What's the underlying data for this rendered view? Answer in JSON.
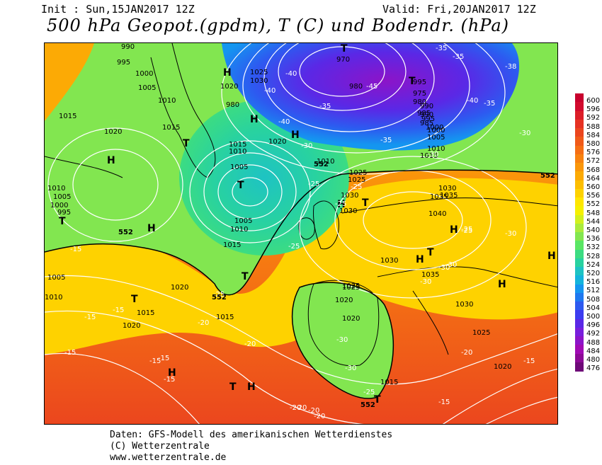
{
  "header": {
    "init": "Init : Sun,15JAN2017 12Z",
    "valid": "Valid: Fri,20JAN2017 12Z",
    "title": "500 hPa Geopot.(gpdm), T (C) und Bodendr. (hPa)"
  },
  "colorbar": {
    "labels": [
      "600",
      "596",
      "592",
      "588",
      "584",
      "580",
      "576",
      "572",
      "568",
      "564",
      "560",
      "556",
      "552",
      "548",
      "544",
      "540",
      "536",
      "532",
      "528",
      "524",
      "520",
      "516",
      "512",
      "508",
      "504",
      "500",
      "496",
      "492",
      "488",
      "484",
      "480",
      "476"
    ],
    "colors": [
      "#c8002d",
      "#d20a2d",
      "#dc1e28",
      "#e63223",
      "#eb461e",
      "#f05a19",
      "#f56e14",
      "#f8820f",
      "#fa960a",
      "#fcaa05",
      "#fdbe00",
      "#fed200",
      "#ffe600",
      "#f5f000",
      "#d2f01e",
      "#aaeb3c",
      "#82e650",
      "#5ae664",
      "#3cdc82",
      "#28d2a0",
      "#1ec3c3",
      "#14b4dc",
      "#1496f0",
      "#1e78f0",
      "#2d5af0",
      "#3c3cf0",
      "#5a28e6",
      "#781edc",
      "#8c14c8",
      "#a00ab4",
      "#8c0a96",
      "#6e0a78"
    ]
  },
  "map": {
    "highs": [
      "H",
      "H",
      "H",
      "H",
      "H",
      "H",
      "H",
      "H",
      "H",
      "H",
      "H",
      "H"
    ],
    "lows": [
      "T",
      "T",
      "T",
      "T",
      "T",
      "T",
      "T",
      "T",
      "T",
      "T",
      "T"
    ],
    "pressure_labels": [
      "990",
      "995",
      "1000",
      "1005",
      "1010",
      "1015",
      "1020",
      "1015",
      "1010",
      "1005",
      "1000",
      "995",
      "1020",
      "1025",
      "1030",
      "1005",
      "1010",
      "1015",
      "1020",
      "1025",
      "1030",
      "1035",
      "1040",
      "1030",
      "1035",
      "1030",
      "1025",
      "1020",
      "1015",
      "1010",
      "1005",
      "1000",
      "995",
      "990",
      "985",
      "980",
      "975",
      "970",
      "980",
      "1015",
      "1020",
      "1025",
      "1030",
      "1035",
      "1030",
      "1025",
      "1020",
      "1015",
      "1010",
      "1005",
      "1000",
      "995",
      "990",
      "985",
      "980",
      "1005",
      "1010",
      "1015",
      "1020",
      "1025",
      "1020",
      "1015",
      "1010"
    ],
    "temp_labels": [
      "-35",
      "-35",
      "-38",
      "-40",
      "-35",
      "-40",
      "-40",
      "-45",
      "-35",
      "-40",
      "-35",
      "-30",
      "-30",
      "-30",
      "-25",
      "-25",
      "-25",
      "-25",
      "-25",
      "-25",
      "-20",
      "-20",
      "-20",
      "-15",
      "-15",
      "-15",
      "-15",
      "-15",
      "-15",
      "-15",
      "-30",
      "-30",
      "-30",
      "-30",
      "-20",
      "-20",
      "-25",
      "-30",
      "-30",
      "-25",
      "-20",
      "-15",
      "-15",
      "-20"
    ],
    "geopot_labels": [
      "552",
      "552",
      "552",
      "552",
      "552"
    ]
  },
  "footer": {
    "line1": "Daten: GFS-Modell des amerikanischen Wetterdienstes",
    "line2": "(C) Wetterzentrale",
    "line3": "www.wetterzentrale.de"
  }
}
